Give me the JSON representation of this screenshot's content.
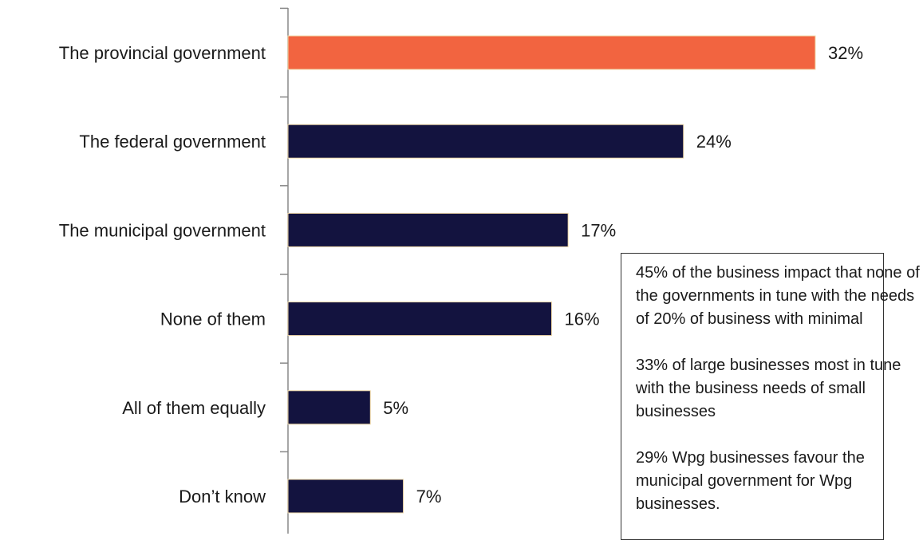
{
  "chart_data": {
    "type": "bar",
    "orientation": "horizontal",
    "categories": [
      "The provincial government",
      "The federal government",
      "The municipal government",
      "None of them",
      "All of them equally",
      "Don’t know"
    ],
    "values": [
      32,
      24,
      17,
      16,
      5,
      7
    ],
    "value_labels": [
      "32%",
      "24%",
      "17%",
      "16%",
      "5%",
      "7%"
    ],
    "xlim": [
      0,
      37
    ],
    "grid": false,
    "colors": {
      "highlight": "#F26440",
      "default": "#13133F",
      "bar_outline": "#F0D9A8",
      "axis": "#888888"
    },
    "highlight_index": 0
  },
  "notes": [
    "45% of the business impact that none of the governments in tune with the needs of 20% of business with minimal",
    "33% of large businesses most in tune with the business needs of small businesses",
    "29% Wpg businesses favour the municipal government for Wpg businesses."
  ]
}
